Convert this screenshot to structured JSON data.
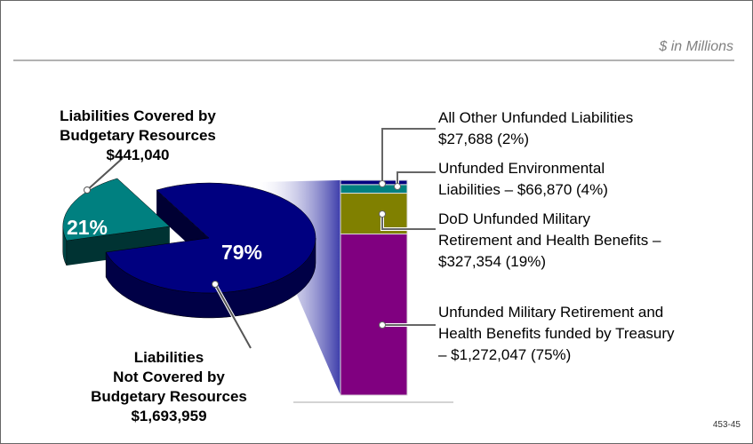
{
  "chart_data": [
    {
      "type": "pie",
      "subtitle": "$ in Millions",
      "footnote": "453-45",
      "categories": [
        "Liabilities Covered by\nBudgetary Resources\n$441,040",
        "Liabilities\nNot Covered by\nBudgetary Resources\n$1,693,959"
      ],
      "values": [
        21,
        79
      ],
      "value_labels": [
        "21%",
        "79%"
      ],
      "colors": [
        "#008080",
        "#000080"
      ]
    },
    {
      "type": "bar",
      "stacked": true,
      "ylim": [
        0,
        100
      ],
      "series": [
        {
          "name": "Unfunded Military Retirement and\nHealth Benefits funded by Treasury\n– $1,272,047 (75%)",
          "color": "#800080",
          "values": [
            75
          ]
        },
        {
          "name": "DoD Unfunded Military\nRetirement and Health Benefits –\n$327,354 (19%)",
          "color": "#808000",
          "values": [
            19
          ]
        },
        {
          "name": "Unfunded Environmental\nLiabilities – $66,870 (4%)",
          "color": "#008080",
          "values": [
            4
          ]
        },
        {
          "name": "All Other Unfunded Liabilities\n$27,688 (2%)",
          "color": "#000080",
          "values": [
            2
          ]
        }
      ]
    }
  ]
}
